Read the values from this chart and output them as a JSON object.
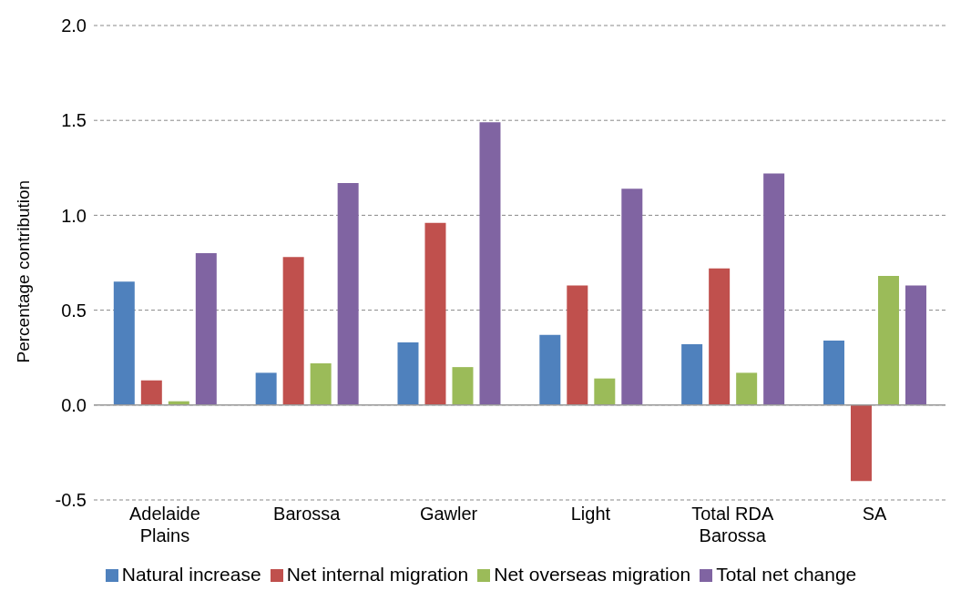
{
  "chart_data": {
    "type": "bar",
    "ylabel": "Percentage contribution",
    "categories": [
      "Adelaide Plains",
      "Barossa",
      "Gawler",
      "Light",
      "Total RDA Barossa",
      "SA"
    ],
    "series": [
      {
        "name": "Natural increase",
        "color": "#4f81bd",
        "values": [
          0.65,
          0.17,
          0.33,
          0.37,
          0.32,
          0.34
        ]
      },
      {
        "name": "Net internal migration",
        "color": "#c0504d",
        "values": [
          0.13,
          0.78,
          0.96,
          0.63,
          0.72,
          -0.4
        ]
      },
      {
        "name": "Net overseas migration",
        "color": "#9bbb59",
        "values": [
          0.02,
          0.22,
          0.2,
          0.14,
          0.17,
          0.68
        ]
      },
      {
        "name": "Total net change",
        "color": "#8064a2",
        "values": [
          0.8,
          1.17,
          1.49,
          1.14,
          1.22,
          0.63
        ]
      }
    ],
    "ylim": [
      -0.5,
      2
    ],
    "yticks": [
      {
        "value": -0.5,
        "label": "-0.5"
      },
      {
        "value": 0,
        "label": "0.0"
      },
      {
        "value": 0.5,
        "label": "0.5"
      },
      {
        "value": 1,
        "label": "1.0"
      },
      {
        "value": 1.5,
        "label": "1.5"
      },
      {
        "value": 2,
        "label": "2.0"
      }
    ],
    "grid": "y",
    "legend": "bottom"
  }
}
